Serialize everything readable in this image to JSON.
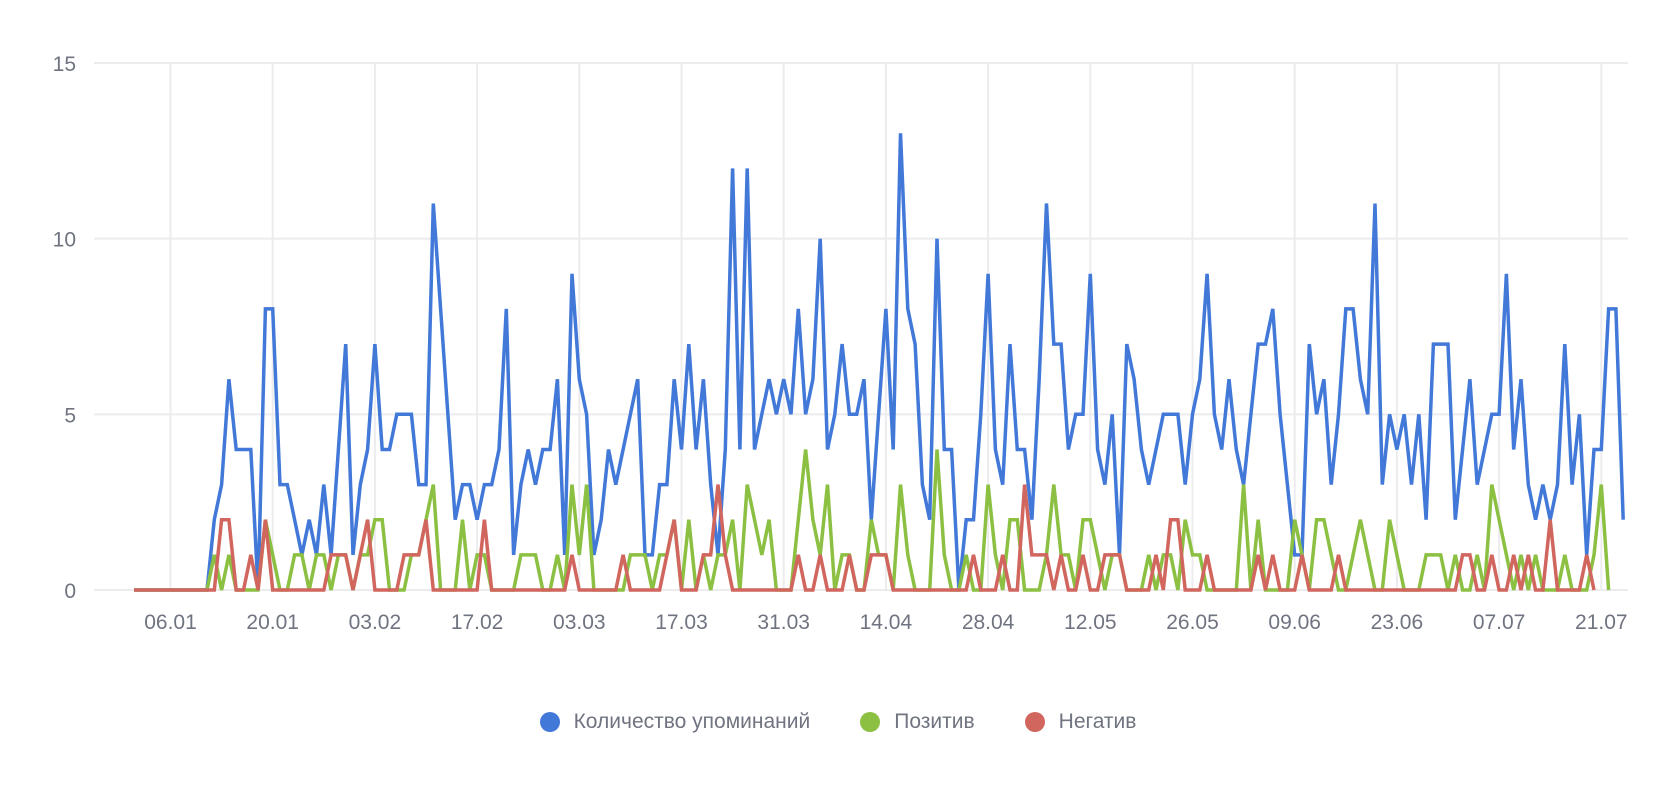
{
  "chart_data": {
    "type": "line",
    "title": "",
    "xlabel": "",
    "ylabel": "",
    "ylim": [
      0,
      15
    ],
    "yticks": [
      0,
      5,
      10,
      15
    ],
    "grid": true,
    "legend_position": "bottom-center",
    "start_date": "01.01",
    "x_tick_labels": [
      "06.01",
      "20.01",
      "03.02",
      "17.02",
      "03.03",
      "17.03",
      "31.03",
      "14.04",
      "28.04",
      "12.05",
      "26.05",
      "09.06",
      "23.06",
      "07.07",
      "21.07"
    ],
    "x_tick_day_index": [
      5,
      19,
      33,
      47,
      61,
      75,
      89,
      103,
      117,
      131,
      145,
      159,
      173,
      187,
      201
    ],
    "series": [
      {
        "name": "Количество упоминаний",
        "color": "#4279d9",
        "values": [
          0,
          0,
          0,
          0,
          0,
          0,
          0,
          0,
          0,
          0,
          0,
          2,
          3,
          6,
          4,
          4,
          4,
          0,
          8,
          8,
          3,
          3,
          2,
          1,
          2,
          1,
          3,
          1,
          4,
          7,
          1,
          3,
          4,
          7,
          4,
          4,
          5,
          5,
          5,
          3,
          3,
          11,
          8,
          5,
          2,
          3,
          3,
          2,
          3,
          3,
          4,
          8,
          1,
          3,
          4,
          3,
          4,
          4,
          6,
          1,
          9,
          6,
          5,
          1,
          2,
          4,
          3,
          4,
          5,
          6,
          1,
          1,
          3,
          3,
          6,
          4,
          7,
          4,
          6,
          3,
          1,
          4,
          12,
          4,
          12,
          4,
          5,
          6,
          5,
          6,
          5,
          8,
          5,
          6,
          10,
          4,
          5,
          7,
          5,
          5,
          6,
          2,
          5,
          8,
          4,
          13,
          8,
          7,
          3,
          2,
          10,
          4,
          4,
          0,
          2,
          2,
          5,
          9,
          4,
          3,
          7,
          4,
          4,
          2,
          6,
          11,
          7,
          7,
          4,
          5,
          5,
          9,
          4,
          3,
          5,
          1,
          7,
          6,
          4,
          3,
          4,
          5,
          5,
          5,
          3,
          5,
          6,
          9,
          5,
          4,
          6,
          4,
          3,
          5,
          7,
          7,
          8,
          5,
          3,
          1,
          1,
          7,
          5,
          6,
          3,
          5,
          8,
          8,
          6,
          5,
          11,
          3,
          5,
          4,
          5,
          3,
          5,
          2,
          7,
          7,
          7,
          2,
          4,
          6,
          3,
          4,
          5,
          5,
          9,
          4,
          6,
          3,
          2,
          3,
          2,
          3,
          7,
          3,
          5,
          1,
          4,
          4,
          8,
          8,
          2
        ]
      },
      {
        "name": "Позитив",
        "color": "#8cc043",
        "values": [
          0,
          0,
          0,
          0,
          0,
          0,
          0,
          0,
          0,
          0,
          0,
          1,
          0,
          1,
          0,
          0,
          0,
          0,
          2,
          1,
          0,
          0,
          1,
          1,
          0,
          1,
          1,
          0,
          1,
          1,
          0,
          1,
          1,
          2,
          2,
          0,
          0,
          0,
          1,
          1,
          2,
          3,
          0,
          0,
          0,
          2,
          0,
          1,
          1,
          0,
          0,
          0,
          0,
          1,
          1,
          1,
          0,
          0,
          1,
          0,
          3,
          1,
          3,
          0,
          0,
          0,
          0,
          0,
          1,
          1,
          1,
          0,
          1,
          1,
          2,
          0,
          2,
          0,
          1,
          0,
          1,
          1,
          2,
          0,
          3,
          2,
          1,
          2,
          0,
          0,
          0,
          2,
          4,
          2,
          1,
          3,
          0,
          1,
          1,
          0,
          0,
          2,
          1,
          1,
          0,
          3,
          1,
          0,
          0,
          0,
          4,
          1,
          0,
          0,
          1,
          0,
          0,
          3,
          1,
          0,
          2,
          2,
          0,
          0,
          0,
          1,
          3,
          1,
          1,
          0,
          2,
          2,
          1,
          0,
          1,
          1,
          0,
          0,
          0,
          1,
          0,
          1,
          1,
          0,
          2,
          1,
          1,
          0,
          0,
          0,
          0,
          0,
          3,
          0,
          2,
          0,
          0,
          0,
          0,
          2,
          1,
          0,
          2,
          2,
          1,
          0,
          0,
          1,
          2,
          1,
          0,
          0,
          2,
          1,
          0,
          0,
          0,
          1,
          1,
          1,
          0,
          1,
          0,
          0,
          1,
          0,
          3,
          2,
          1,
          0,
          1,
          0,
          1,
          0,
          0,
          0,
          1,
          0,
          0,
          0,
          1,
          3,
          0
        ]
      },
      {
        "name": "Негатив",
        "color": "#d1665f",
        "values": [
          0,
          0,
          0,
          0,
          0,
          0,
          0,
          0,
          0,
          0,
          0,
          0,
          2,
          2,
          0,
          0,
          1,
          0,
          2,
          0,
          0,
          0,
          0,
          0,
          0,
          0,
          0,
          1,
          1,
          1,
          0,
          1,
          2,
          0,
          0,
          0,
          0,
          1,
          1,
          1,
          2,
          0,
          0,
          0,
          0,
          0,
          0,
          0,
          2,
          0,
          0,
          0,
          0,
          0,
          0,
          0,
          0,
          0,
          0,
          0,
          1,
          0,
          0,
          0,
          0,
          0,
          0,
          1,
          0,
          0,
          0,
          0,
          0,
          1,
          2,
          0,
          0,
          0,
          1,
          1,
          3,
          1,
          0,
          0,
          0,
          0,
          0,
          0,
          0,
          0,
          0,
          1,
          0,
          0,
          1,
          0,
          0,
          0,
          1,
          0,
          0,
          1,
          1,
          1,
          0,
          0,
          0,
          0,
          0,
          0,
          0,
          0,
          0,
          0,
          0,
          1,
          0,
          0,
          0,
          1,
          0,
          0,
          3,
          1,
          1,
          1,
          0,
          1,
          0,
          0,
          1,
          0,
          0,
          1,
          1,
          1,
          0,
          0,
          0,
          0,
          1,
          0,
          2,
          2,
          0,
          0,
          0,
          1,
          0,
          0,
          0,
          0,
          0,
          0,
          1,
          0,
          1,
          0,
          0,
          0,
          1,
          0,
          0,
          0,
          0,
          1,
          0,
          0,
          0,
          0,
          0,
          0,
          0,
          0,
          0,
          0,
          0,
          0,
          0,
          0,
          0,
          0,
          1,
          1,
          0,
          0,
          1,
          0,
          0,
          1,
          0,
          1,
          0,
          0,
          2,
          0,
          0,
          0,
          0,
          1,
          0
        ]
      }
    ]
  },
  "legend": {
    "items": [
      {
        "label": "Количество упоминаний",
        "color": "#4279d9"
      },
      {
        "label": "Позитив",
        "color": "#8cc043"
      },
      {
        "label": "Негатив",
        "color": "#d1665f"
      }
    ]
  },
  "colors": {
    "grid": "#ececef",
    "axis_text": "#6f7480",
    "background": "#ffffff"
  }
}
